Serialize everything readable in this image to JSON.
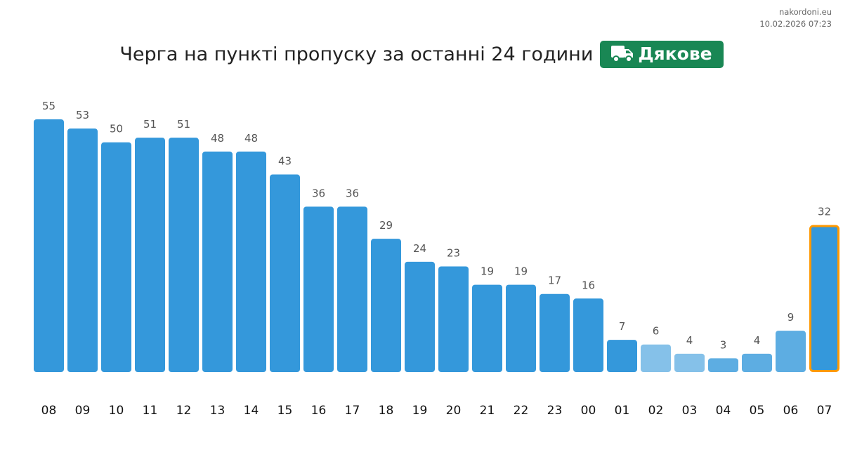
{
  "source": {
    "site": "nakordoni.eu",
    "timestamp": "10.02.2026 07:23"
  },
  "header": {
    "title": "Черга на пункті пропуску за останні 24 години",
    "badge_label": "Дякове",
    "badge_icon": "truck-icon",
    "badge_color": "#198754"
  },
  "chart_data": {
    "type": "bar",
    "title": "Черга на пункті пропуску за останні 24 години",
    "categories": [
      "08",
      "09",
      "10",
      "11",
      "12",
      "13",
      "14",
      "15",
      "16",
      "17",
      "18",
      "19",
      "20",
      "21",
      "22",
      "23",
      "00",
      "01",
      "02",
      "03",
      "04",
      "05",
      "06",
      "07"
    ],
    "values": [
      55,
      53,
      50,
      51,
      51,
      48,
      48,
      43,
      36,
      36,
      29,
      24,
      23,
      19,
      19,
      17,
      16,
      7,
      6,
      4,
      3,
      4,
      9,
      32
    ],
    "bar_colors": [
      "#3498db",
      "#3498db",
      "#3498db",
      "#3498db",
      "#3498db",
      "#3498db",
      "#3498db",
      "#3498db",
      "#3498db",
      "#3498db",
      "#3498db",
      "#3498db",
      "#3498db",
      "#3498db",
      "#3498db",
      "#3498db",
      "#3498db",
      "#3498db",
      "#85c1e9",
      "#85c1e9",
      "#5dade2",
      "#5dade2",
      "#5dade2",
      "#3498db"
    ],
    "highlighted_category": "07",
    "highlight_color": "#ff9900",
    "ylim": [
      0,
      55
    ],
    "grid": false,
    "data_labels": true
  }
}
